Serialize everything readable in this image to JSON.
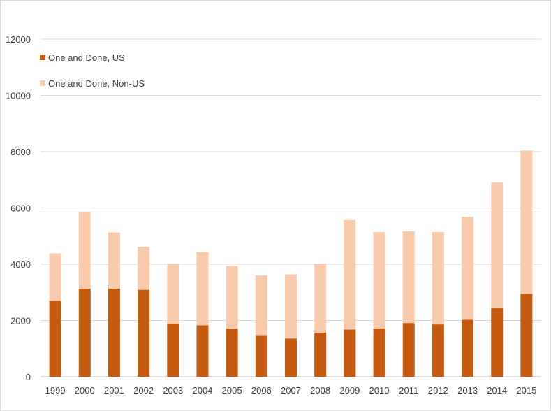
{
  "chart_data": {
    "type": "bar",
    "stacked": true,
    "title": "",
    "xlabel": "",
    "ylabel": "",
    "ylim": [
      0,
      12000
    ],
    "y_ticks": [
      0,
      2000,
      4000,
      6000,
      8000,
      10000,
      12000
    ],
    "grid": true,
    "legend_position": "top-left",
    "categories": [
      "1999",
      "2000",
      "2001",
      "2002",
      "2003",
      "2004",
      "2005",
      "2006",
      "2007",
      "2008",
      "2009",
      "2010",
      "2011",
      "2012",
      "2013",
      "2014",
      "2015"
    ],
    "series": [
      {
        "name": "One and Done, US",
        "color": "#c55a11",
        "values": [
          2700,
          3130,
          3130,
          3090,
          1890,
          1830,
          1710,
          1480,
          1360,
          1570,
          1680,
          1720,
          1910,
          1860,
          2030,
          2450,
          2950
        ]
      },
      {
        "name": "One and Done, Non-US",
        "color": "#f8cbad",
        "values": [
          1690,
          2720,
          2000,
          1530,
          2130,
          2600,
          2220,
          2120,
          2280,
          2450,
          3890,
          3420,
          3260,
          3280,
          3660,
          4460,
          5090
        ]
      }
    ]
  }
}
